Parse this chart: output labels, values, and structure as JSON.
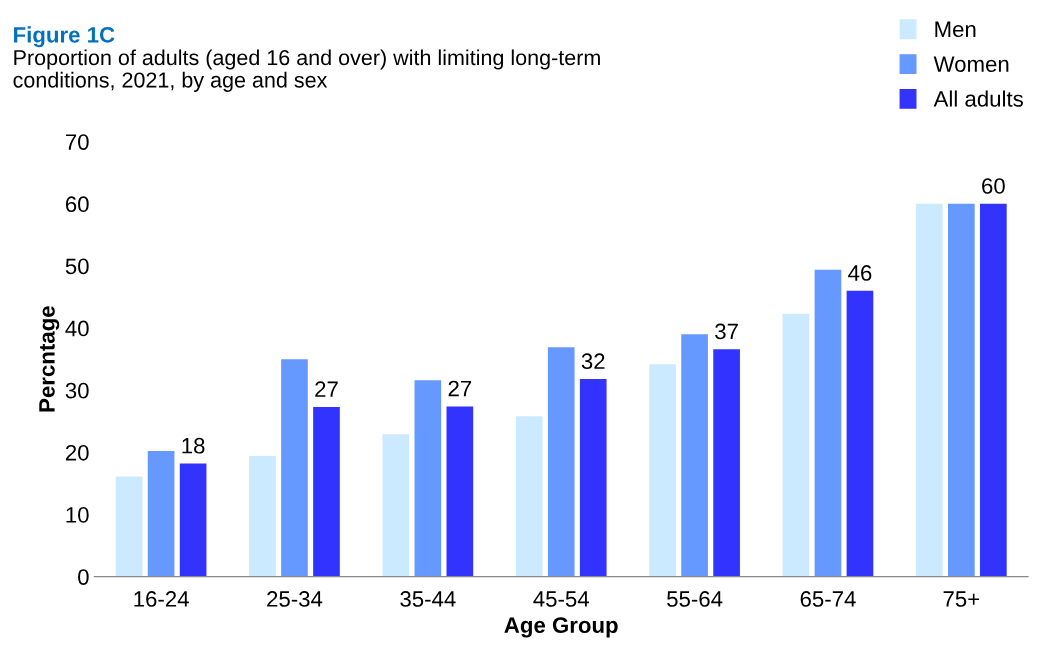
{
  "chart_data": {
    "type": "bar",
    "title": "Figure 1C",
    "subtitle": "Proportion of adults (aged 16 and over) with limiting long-term\nconditions, 2021, by age and sex",
    "xlabel": "Age Group",
    "ylabel": "Percntage",
    "categories": [
      "16-24",
      "25-34",
      "35-44",
      "45-54",
      "55-64",
      "65-74",
      "75+"
    ],
    "series": [
      {
        "name": "Men",
        "color": "#cceaff",
        "values": [
          16.1,
          19.4,
          22.9,
          25.8,
          34.2,
          42.3,
          60
        ]
      },
      {
        "name": "Women",
        "color": "#6699ff",
        "values": [
          20.2,
          35,
          31.6,
          36.9,
          39,
          49.4,
          60
        ]
      },
      {
        "name": "All adults",
        "color": "#3333ff",
        "values": [
          18.2,
          27.3,
          27.4,
          31.8,
          36.6,
          46,
          60
        ],
        "value_labels": [
          "18",
          "27",
          "27",
          "32",
          "37",
          "46",
          "60"
        ]
      }
    ],
    "ylim": [
      0,
      70
    ],
    "yticks": [
      0,
      10,
      20,
      30,
      40,
      50,
      60,
      70
    ],
    "grid": false,
    "legend": "top right"
  }
}
